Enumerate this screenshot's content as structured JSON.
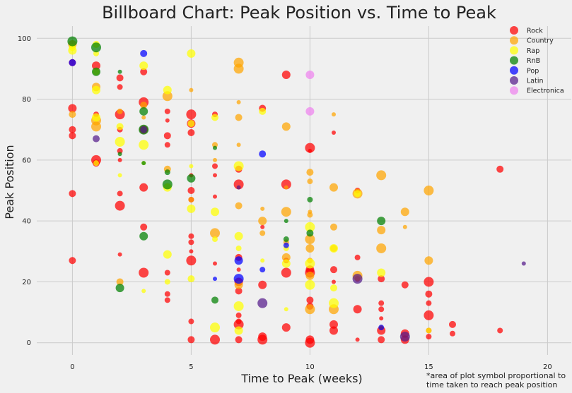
{
  "chart_data": {
    "type": "scatter",
    "title": "Billboard Chart: Peak Position vs. Time to Peak",
    "xlabel": "Time to Peak (weeks)",
    "ylabel": "Peak Position",
    "xlim": [
      -1.5,
      21
    ],
    "ylim": [
      -4,
      104
    ],
    "xticks": [
      0,
      5,
      10,
      15,
      20
    ],
    "yticks": [
      0,
      20,
      40,
      60,
      80,
      100
    ],
    "grid": true,
    "legend_position": "top-right",
    "footnote": "*area of plot symbol proportional to\ntime taken to reach peak position",
    "series": [
      {
        "name": "Rock",
        "color": "#ff0000",
        "points": [
          [
            0,
            92
          ],
          [
            0,
            70
          ],
          [
            0,
            68
          ],
          [
            0,
            77
          ],
          [
            0,
            49
          ],
          [
            0,
            27
          ],
          [
            1,
            91
          ],
          [
            1,
            60
          ],
          [
            1,
            75
          ],
          [
            1,
            59
          ],
          [
            2,
            87
          ],
          [
            2,
            84
          ],
          [
            2,
            75
          ],
          [
            2,
            70
          ],
          [
            2,
            63
          ],
          [
            2,
            60
          ],
          [
            2,
            49
          ],
          [
            2,
            45
          ],
          [
            2,
            29
          ],
          [
            3,
            89
          ],
          [
            3,
            79
          ],
          [
            3,
            51
          ],
          [
            3,
            38
          ],
          [
            3,
            23
          ],
          [
            3,
            70
          ],
          [
            4,
            76
          ],
          [
            4,
            73
          ],
          [
            4,
            68
          ],
          [
            4,
            65
          ],
          [
            4,
            23
          ],
          [
            4,
            16
          ],
          [
            4,
            14
          ],
          [
            5,
            75
          ],
          [
            5,
            72
          ],
          [
            5,
            69
          ],
          [
            5,
            55
          ],
          [
            5,
            50
          ],
          [
            5,
            47
          ],
          [
            5,
            35
          ],
          [
            5,
            33
          ],
          [
            5,
            30
          ],
          [
            5,
            27
          ],
          [
            5,
            7
          ],
          [
            5,
            1
          ],
          [
            6,
            58
          ],
          [
            6,
            55
          ],
          [
            6,
            48
          ],
          [
            6,
            26
          ],
          [
            6,
            75
          ],
          [
            6,
            1
          ],
          [
            7,
            57
          ],
          [
            7,
            52
          ],
          [
            7,
            28
          ],
          [
            7,
            24
          ],
          [
            7,
            20
          ],
          [
            7,
            17
          ],
          [
            7,
            9
          ],
          [
            7,
            7
          ],
          [
            7,
            1
          ],
          [
            7,
            6
          ],
          [
            8,
            77
          ],
          [
            8,
            38
          ],
          [
            8,
            19
          ],
          [
            8,
            2
          ],
          [
            8,
            1
          ],
          [
            9,
            88
          ],
          [
            9,
            52
          ],
          [
            9,
            27
          ],
          [
            9,
            23
          ],
          [
            9,
            5
          ],
          [
            10,
            64
          ],
          [
            10,
            63
          ],
          [
            10,
            24
          ],
          [
            10,
            23
          ],
          [
            10,
            14
          ],
          [
            10,
            12
          ],
          [
            10,
            1
          ],
          [
            10,
            0
          ],
          [
            11,
            69
          ],
          [
            11,
            24
          ],
          [
            11,
            20
          ],
          [
            11,
            6
          ],
          [
            11,
            4
          ],
          [
            12,
            50
          ],
          [
            12,
            28
          ],
          [
            12,
            21
          ],
          [
            12,
            11
          ],
          [
            12,
            1
          ],
          [
            13,
            21
          ],
          [
            13,
            13
          ],
          [
            13,
            11
          ],
          [
            13,
            8
          ],
          [
            13,
            4
          ],
          [
            13,
            1
          ],
          [
            14,
            19
          ],
          [
            14,
            3
          ],
          [
            14,
            1
          ],
          [
            15,
            20
          ],
          [
            15,
            16
          ],
          [
            15,
            13
          ],
          [
            15,
            9
          ],
          [
            15,
            4
          ],
          [
            15,
            2
          ],
          [
            16,
            6
          ],
          [
            16,
            3
          ],
          [
            18,
            57
          ],
          [
            18,
            4
          ]
        ]
      },
      {
        "name": "Country",
        "color": "#ffa500",
        "points": [
          [
            0,
            98
          ],
          [
            0,
            75
          ],
          [
            1,
            84
          ],
          [
            1,
            73
          ],
          [
            1,
            71
          ],
          [
            2,
            76
          ],
          [
            2,
            20
          ],
          [
            3,
            78
          ],
          [
            3,
            74
          ],
          [
            4,
            81
          ],
          [
            4,
            57
          ],
          [
            5,
            83
          ],
          [
            5,
            47
          ],
          [
            6,
            65
          ],
          [
            6,
            36
          ],
          [
            6,
            60
          ],
          [
            7,
            92
          ],
          [
            7,
            90
          ],
          [
            7,
            79
          ],
          [
            7,
            74
          ],
          [
            7,
            65
          ],
          [
            7,
            45
          ],
          [
            7,
            19
          ],
          [
            8,
            44
          ],
          [
            8,
            40
          ],
          [
            8,
            36
          ],
          [
            9,
            71
          ],
          [
            9,
            51
          ],
          [
            9,
            43
          ],
          [
            9,
            33
          ],
          [
            9,
            28
          ],
          [
            10,
            43
          ],
          [
            10,
            42
          ],
          [
            10,
            56
          ],
          [
            10,
            53
          ],
          [
            10,
            34
          ],
          [
            10,
            31
          ],
          [
            10,
            27
          ],
          [
            10,
            22
          ],
          [
            10,
            11
          ],
          [
            11,
            75
          ],
          [
            11,
            51
          ],
          [
            11,
            38
          ],
          [
            11,
            31
          ],
          [
            11,
            11
          ],
          [
            12,
            49
          ],
          [
            12,
            22
          ],
          [
            13,
            55
          ],
          [
            13,
            37
          ],
          [
            13,
            31
          ],
          [
            14,
            43
          ],
          [
            14,
            38
          ],
          [
            15,
            50
          ],
          [
            15,
            27
          ]
        ]
      },
      {
        "name": "Rap",
        "color": "#ffff00",
        "points": [
          [
            0,
            97
          ],
          [
            0,
            96
          ],
          [
            1,
            98
          ],
          [
            1,
            95
          ],
          [
            1,
            89
          ],
          [
            1,
            83
          ],
          [
            1,
            59
          ],
          [
            1,
            74
          ],
          [
            2,
            71
          ],
          [
            2,
            66
          ],
          [
            2,
            55
          ],
          [
            3,
            91
          ],
          [
            3,
            65
          ],
          [
            3,
            59
          ],
          [
            3,
            17
          ],
          [
            4,
            83
          ],
          [
            4,
            51
          ],
          [
            4,
            29
          ],
          [
            4,
            20
          ],
          [
            5,
            95
          ],
          [
            5,
            72
          ],
          [
            5,
            58
          ],
          [
            5,
            44
          ],
          [
            5,
            21
          ],
          [
            6,
            74
          ],
          [
            6,
            43
          ],
          [
            6,
            34
          ],
          [
            6,
            5
          ],
          [
            7,
            58
          ],
          [
            7,
            35
          ],
          [
            7,
            31
          ],
          [
            7,
            12
          ],
          [
            7,
            4
          ],
          [
            8,
            76
          ],
          [
            8,
            27
          ],
          [
            9,
            31
          ],
          [
            9,
            26
          ],
          [
            9,
            11
          ],
          [
            10,
            38
          ],
          [
            10,
            26
          ],
          [
            10,
            19
          ],
          [
            11,
            31
          ],
          [
            11,
            18
          ],
          [
            11,
            13
          ],
          [
            12,
            49
          ],
          [
            13,
            23
          ],
          [
            15,
            4
          ]
        ]
      },
      {
        "name": "RnB",
        "color": "#008000",
        "points": [
          [
            0,
            99
          ],
          [
            1,
            97
          ],
          [
            1,
            89
          ],
          [
            2,
            89
          ],
          [
            2,
            62
          ],
          [
            2,
            18
          ],
          [
            3,
            76
          ],
          [
            3,
            70
          ],
          [
            3,
            59
          ],
          [
            3,
            35
          ],
          [
            4,
            56
          ],
          [
            4,
            52
          ],
          [
            5,
            54
          ],
          [
            6,
            64
          ],
          [
            6,
            14
          ],
          [
            9,
            40
          ],
          [
            9,
            34
          ],
          [
            10,
            47
          ],
          [
            10,
            36
          ],
          [
            13,
            40
          ]
        ]
      },
      {
        "name": "Pop",
        "color": "#0000ff",
        "points": [
          [
            0,
            92
          ],
          [
            3,
            95
          ],
          [
            6,
            21
          ],
          [
            7,
            27
          ],
          [
            7,
            21
          ],
          [
            8,
            62
          ],
          [
            8,
            24
          ],
          [
            9,
            32
          ],
          [
            13,
            5
          ]
        ]
      },
      {
        "name": "Latin",
        "color": "#551a8b",
        "points": [
          [
            1,
            67
          ],
          [
            3,
            70
          ],
          [
            7,
            51
          ],
          [
            8,
            13
          ],
          [
            12,
            21
          ],
          [
            13,
            5
          ],
          [
            14,
            2
          ],
          [
            19,
            26
          ]
        ]
      },
      {
        "name": "Electronica",
        "color": "#ee82ee",
        "points": [
          [
            10,
            88
          ],
          [
            10,
            76
          ]
        ]
      }
    ]
  }
}
